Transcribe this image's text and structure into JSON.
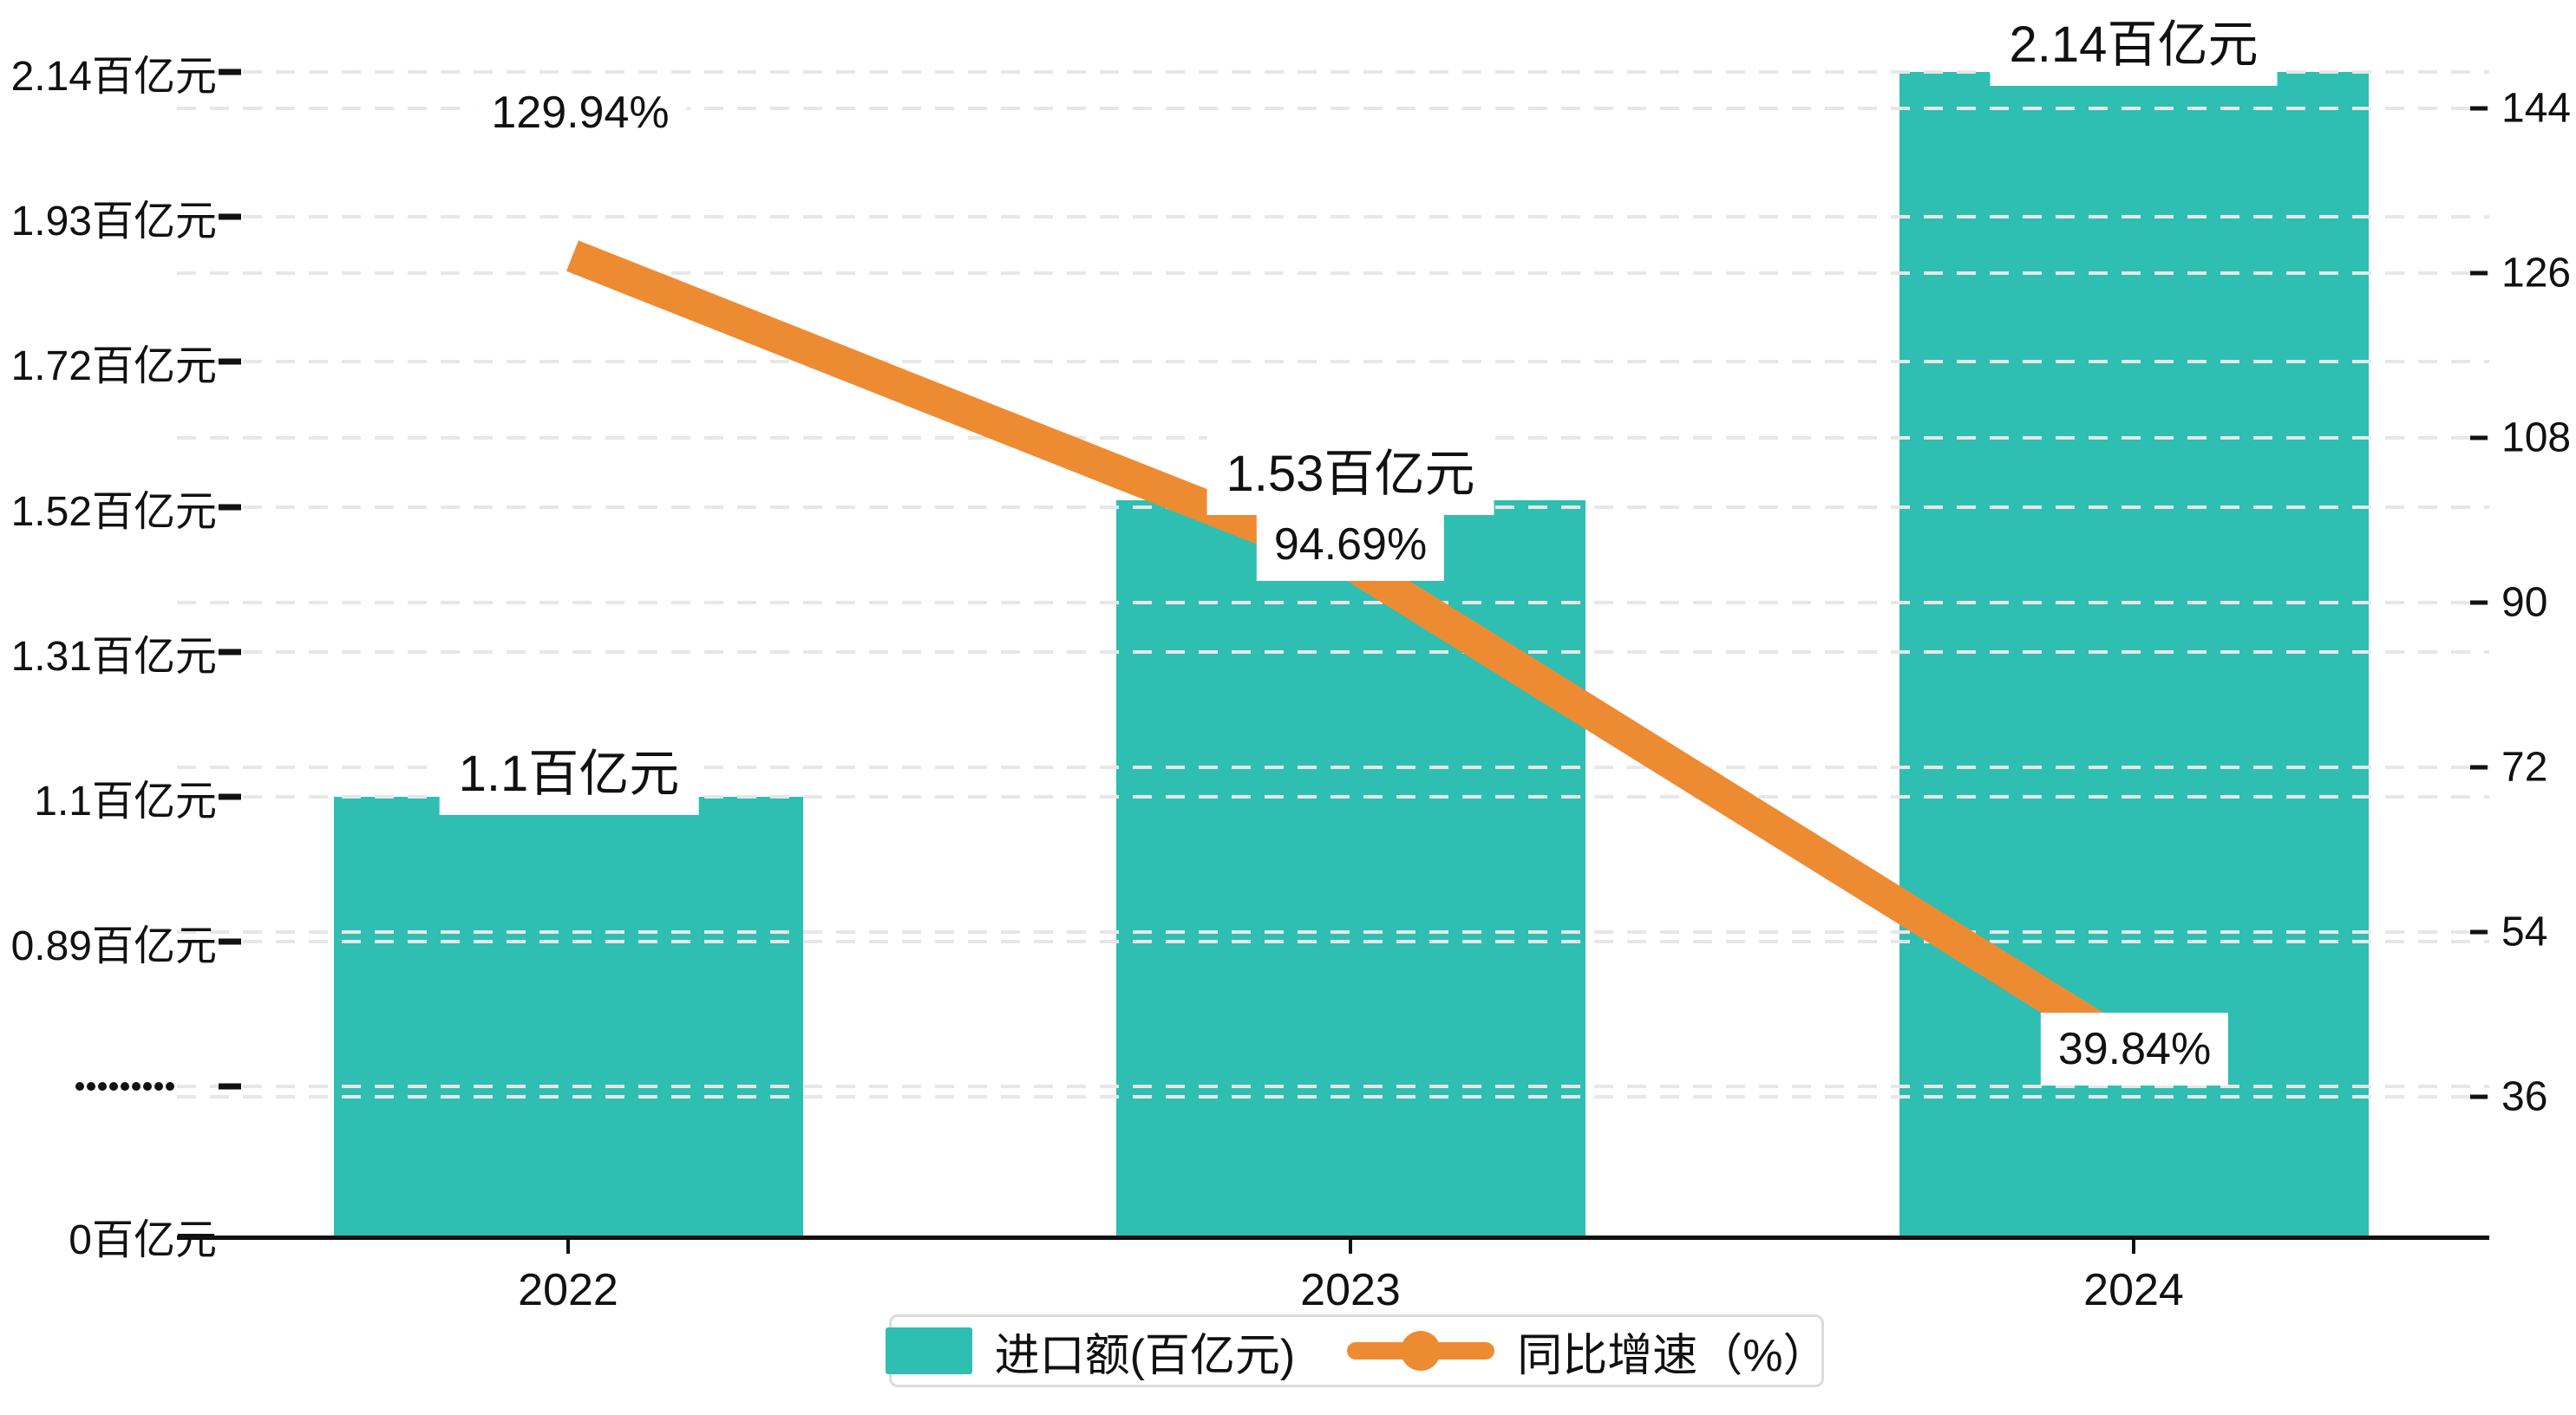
{
  "chart_data": {
    "type": "combo-bar-line",
    "categories": [
      "2022",
      "2023",
      "2024"
    ],
    "series": [
      {
        "name": "进口额(百亿元)",
        "type": "bar",
        "unit": "百亿元",
        "color": "#2FBEB2",
        "values": [
          1.1,
          1.53,
          2.14
        ]
      },
      {
        "name": "同比增速（%）",
        "type": "line",
        "unit": "%",
        "color": "#ED8B33",
        "values": [
          129.94,
          94.69,
          39.84
        ]
      }
    ],
    "bar_value_labels": [
      "1.1百亿元",
      "1.53百亿元",
      "2.14百亿元"
    ],
    "line_value_labels": [
      "129.94%",
      "94.69%",
      "39.84%"
    ],
    "left_axis": {
      "tick_labels": [
        "2.14百亿元",
        "1.93百亿元",
        "1.72百亿元",
        "1.52百亿元",
        "1.31百亿元",
        "1.1百亿元",
        "0.89百亿元",
        "·········",
        "0百亿元"
      ],
      "has_break": true,
      "break_label_index": 7
    },
    "right_axis": {
      "tick_labels": [
        "144",
        "126",
        "108",
        "90",
        "72",
        "54",
        "36"
      ],
      "range": [
        36,
        144
      ]
    },
    "grid": true,
    "legend_position": "bottom"
  },
  "legend": {
    "items": [
      {
        "label": "进口额(百亿元)",
        "marker": "bar",
        "color": "#2FBEB2"
      },
      {
        "label": "同比增速（%）",
        "marker": "line-dot",
        "color": "#ED8B33"
      }
    ]
  },
  "colors": {
    "bar": "#2FBEB2",
    "line": "#ED8B33",
    "grid": "#E7E7E7",
    "axis": "#111111",
    "legend_border": "#DCDCDC",
    "label_bg": "#FFFFFF"
  }
}
